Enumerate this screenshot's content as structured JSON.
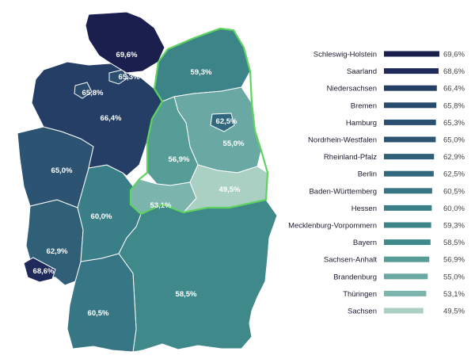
{
  "chart_data": {
    "type": "bar",
    "orientation": "horizontal",
    "title": "",
    "xlabel": "",
    "ylabel": "",
    "xlim": [
      0,
      69.6
    ],
    "grid": false,
    "categories": [
      "Schleswig-Holstein",
      "Saarland",
      "Niedersachsen",
      "Bremen",
      "Hamburg",
      "Nordrhein-Westfalen",
      "Rheinland-Pfalz",
      "Berlin",
      "Baden-Württemberg",
      "Hessen",
      "Mecklenburg-Vorpommern",
      "Bayern",
      "Sachsen-Anhalt",
      "Brandenburg",
      "Thüringen",
      "Sachsen"
    ],
    "values": [
      69.6,
      68.6,
      66.4,
      65.8,
      65.3,
      65.0,
      62.9,
      62.5,
      60.5,
      60.0,
      59.3,
      58.5,
      56.9,
      55.0,
      53.1,
      49.5
    ],
    "value_labels": [
      "69,6%",
      "68,6%",
      "66,4%",
      "65,8%",
      "65,3%",
      "65,0%",
      "62,9%",
      "62,5%",
      "60,5%",
      "60,0%",
      "59,3%",
      "58,5%",
      "56,9%",
      "55,0%",
      "53,1%",
      "49,5%"
    ],
    "colors": [
      "#1b1f4e",
      "#1f2a5a",
      "#253e65",
      "#284a6c",
      "#2a4f70",
      "#2c5472",
      "#305f78",
      "#32687e",
      "#377785",
      "#3a7e87",
      "#3d8489",
      "#40898b",
      "#569c97",
      "#6aa9a3",
      "#7cb5ad",
      "#a9d0c2"
    ]
  },
  "map": {
    "state_labels": [
      "69,6%",
      "65,3%",
      "65,8%",
      "66,4%",
      "65,0%",
      "62,9%",
      "68,6%",
      "60,0%",
      "60,5%",
      "58,5%",
      "59,3%",
      "62,5%",
      "55,0%",
      "56,9%",
      "53,1%",
      "49,5%"
    ],
    "east_outline_color": "#5fd35f"
  }
}
